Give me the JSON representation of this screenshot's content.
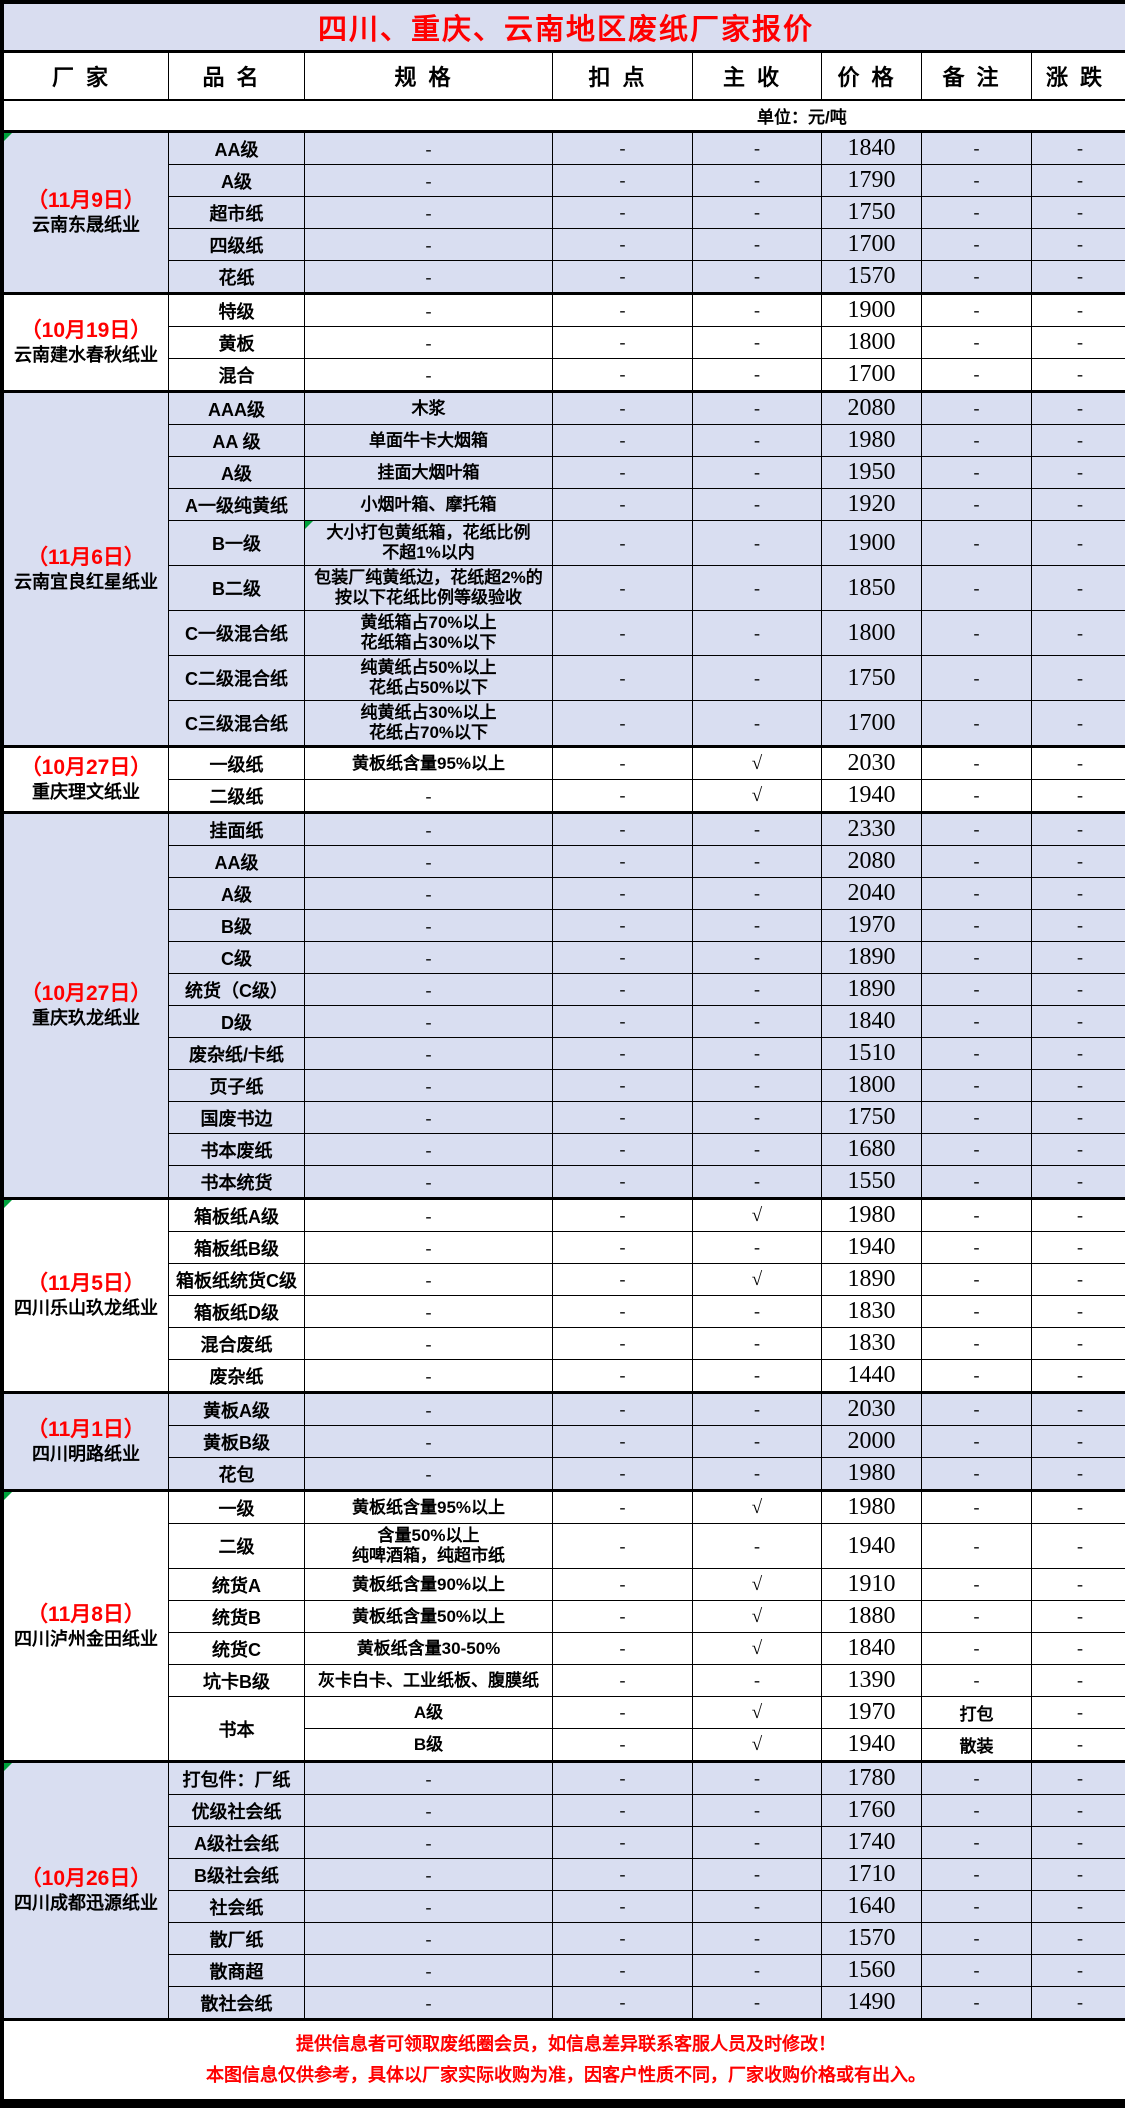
{
  "title": "四川、重庆、云南地区废纸厂家报价",
  "columns": [
    "厂家",
    "品名",
    "规格",
    "扣点",
    "主收",
    "价格",
    "备注",
    "涨跌"
  ],
  "unit_label": "单位：元/吨",
  "colors": {
    "accent_red": "#FF0000",
    "shaded_row_bg": "#D9DEF1",
    "title_bg": "#D9DDF0",
    "border": "#000000",
    "comment_marker_green": "#00A23C"
  },
  "check_symbol": "√",
  "sections": [
    {
      "date": "（11月9日）",
      "factory": "云南东晟纸业",
      "shaded": true,
      "marker": true,
      "rows": [
        {
          "product": "AA级",
          "spec": "-",
          "deduction": "-",
          "main": "-",
          "price": "1840",
          "remark": "-",
          "change": "-"
        },
        {
          "product": "A级",
          "spec": "-",
          "deduction": "-",
          "main": "-",
          "price": "1790",
          "remark": "-",
          "change": "-"
        },
        {
          "product": "超市纸",
          "spec": "-",
          "deduction": "-",
          "main": "-",
          "price": "1750",
          "remark": "-",
          "change": "-"
        },
        {
          "product": "四级纸",
          "spec": "-",
          "deduction": "-",
          "main": "-",
          "price": "1700",
          "remark": "-",
          "change": "-"
        },
        {
          "product": "花纸",
          "spec": "-",
          "deduction": "-",
          "main": "-",
          "price": "1570",
          "remark": "-",
          "change": "-"
        }
      ]
    },
    {
      "date": "（10月19日）",
      "factory": "云南建水春秋纸业",
      "shaded": false,
      "marker": false,
      "rows": [
        {
          "product": "特级",
          "spec": "-",
          "deduction": "-",
          "main": "-",
          "price": "1900",
          "remark": "-",
          "change": "-"
        },
        {
          "product": "黄板",
          "spec": "-",
          "deduction": "-",
          "main": "-",
          "price": "1800",
          "remark": "-",
          "change": "-"
        },
        {
          "product": "混合",
          "spec": "-",
          "deduction": "-",
          "main": "-",
          "price": "1700",
          "remark": "-",
          "change": "-"
        }
      ]
    },
    {
      "date": "（11月6日）",
      "factory": "云南宜良红星纸业",
      "shaded": true,
      "marker": false,
      "rows": [
        {
          "product": "AAA级",
          "spec": "木浆",
          "deduction": "-",
          "main": "-",
          "price": "2080",
          "remark": "-",
          "change": "-"
        },
        {
          "product": "AA 级",
          "spec": "单面牛卡大烟箱",
          "deduction": "-",
          "main": "-",
          "price": "1980",
          "remark": "-",
          "change": "-"
        },
        {
          "product": "A级",
          "spec": "挂面大烟叶箱",
          "deduction": "-",
          "main": "-",
          "price": "1950",
          "remark": "-",
          "change": "-"
        },
        {
          "product": "A一级纯黄纸",
          "spec": "小烟叶箱、摩托箱",
          "deduction": "-",
          "main": "-",
          "price": "1920",
          "remark": "-",
          "change": "-"
        },
        {
          "product": "B一级",
          "spec": "大小打包黄纸箱，花纸比例\n不超1%以内",
          "deduction": "-",
          "main": "-",
          "price": "1900",
          "remark": "-",
          "change": "-",
          "spec_marker": true
        },
        {
          "product": "B二级",
          "spec": "包装厂纯黄纸边，花纸超2%的\n按以下花纸比例等级验收",
          "deduction": "-",
          "main": "-",
          "price": "1850",
          "remark": "-",
          "change": "-"
        },
        {
          "product": "C一级混合纸",
          "spec": "黄纸箱占70%以上\n花纸箱占30%以下",
          "deduction": "-",
          "main": "-",
          "price": "1800",
          "remark": "-",
          "change": "-"
        },
        {
          "product": "C二级混合纸",
          "spec": "纯黄纸占50%以上\n花纸占50%以下",
          "deduction": "-",
          "main": "-",
          "price": "1750",
          "remark": "-",
          "change": "-"
        },
        {
          "product": "C三级混合纸",
          "spec": "纯黄纸占30%以上\n花纸占70%以下",
          "deduction": "-",
          "main": "-",
          "price": "1700",
          "remark": "-",
          "change": "-"
        }
      ]
    },
    {
      "date": "（10月27日）",
      "factory": "重庆理文纸业",
      "shaded": false,
      "marker": false,
      "rows": [
        {
          "product": "一级纸",
          "spec": "黄板纸含量95%以上",
          "deduction": "-",
          "main": "√",
          "price": "2030",
          "remark": "-",
          "change": "-"
        },
        {
          "product": "二级纸",
          "spec": "-",
          "deduction": "-",
          "main": "√",
          "price": "1940",
          "remark": "-",
          "change": "-"
        }
      ]
    },
    {
      "date": "（10月27日）",
      "factory": "重庆玖龙纸业",
      "shaded": true,
      "marker": false,
      "rows": [
        {
          "product": "挂面纸",
          "spec": "-",
          "deduction": "-",
          "main": "-",
          "price": "2330",
          "remark": "-",
          "change": "-"
        },
        {
          "product": "AA级",
          "spec": "-",
          "deduction": "-",
          "main": "-",
          "price": "2080",
          "remark": "-",
          "change": "-"
        },
        {
          "product": "A级",
          "spec": "-",
          "deduction": "-",
          "main": "-",
          "price": "2040",
          "remark": "-",
          "change": "-"
        },
        {
          "product": "B级",
          "spec": "-",
          "deduction": "-",
          "main": "-",
          "price": "1970",
          "remark": "-",
          "change": "-"
        },
        {
          "product": "C级",
          "spec": "-",
          "deduction": "-",
          "main": "-",
          "price": "1890",
          "remark": "-",
          "change": "-"
        },
        {
          "product": "统货（C级）",
          "spec": "-",
          "deduction": "-",
          "main": "-",
          "price": "1890",
          "remark": "-",
          "change": "-"
        },
        {
          "product": "D级",
          "spec": "-",
          "deduction": "-",
          "main": "-",
          "price": "1840",
          "remark": "-",
          "change": "-"
        },
        {
          "product": "废杂纸/卡纸",
          "spec": "-",
          "deduction": "-",
          "main": "-",
          "price": "1510",
          "remark": "-",
          "change": "-"
        },
        {
          "product": "页子纸",
          "spec": "-",
          "deduction": "-",
          "main": "-",
          "price": "1800",
          "remark": "-",
          "change": "-"
        },
        {
          "product": "国废书边",
          "spec": "-",
          "deduction": "-",
          "main": "-",
          "price": "1750",
          "remark": "-",
          "change": "-"
        },
        {
          "product": "书本废纸",
          "spec": "-",
          "deduction": "-",
          "main": "-",
          "price": "1680",
          "remark": "-",
          "change": "-"
        },
        {
          "product": "书本统货",
          "spec": "-",
          "deduction": "-",
          "main": "-",
          "price": "1550",
          "remark": "-",
          "change": "-"
        }
      ]
    },
    {
      "date": "（11月5日）",
      "factory": "四川乐山玖龙纸业",
      "shaded": false,
      "marker": true,
      "rows": [
        {
          "product": "箱板纸A级",
          "spec": "-",
          "deduction": "-",
          "main": "√",
          "price": "1980",
          "remark": "-",
          "change": "-"
        },
        {
          "product": "箱板纸B级",
          "spec": "-",
          "deduction": "-",
          "main": "-",
          "price": "1940",
          "remark": "-",
          "change": "-"
        },
        {
          "product": "箱板纸统货C级",
          "spec": "-",
          "deduction": "-",
          "main": "√",
          "price": "1890",
          "remark": "-",
          "change": "-"
        },
        {
          "product": "箱板纸D级",
          "spec": "-",
          "deduction": "-",
          "main": "-",
          "price": "1830",
          "remark": "-",
          "change": "-"
        },
        {
          "product": "混合废纸",
          "spec": "-",
          "deduction": "-",
          "main": "-",
          "price": "1830",
          "remark": "-",
          "change": "-"
        },
        {
          "product": "废杂纸",
          "spec": "-",
          "deduction": "-",
          "main": "-",
          "price": "1440",
          "remark": "-",
          "change": "-"
        }
      ]
    },
    {
      "date": "（11月1日）",
      "factory": "四川明路纸业",
      "shaded": true,
      "marker": false,
      "rows": [
        {
          "product": "黄板A级",
          "spec": "-",
          "deduction": "-",
          "main": "-",
          "price": "2030",
          "remark": "-",
          "change": "-"
        },
        {
          "product": "黄板B级",
          "spec": "-",
          "deduction": "-",
          "main": "-",
          "price": "2000",
          "remark": "-",
          "change": "-"
        },
        {
          "product": "花包",
          "spec": "-",
          "deduction": "-",
          "main": "-",
          "price": "1980",
          "remark": "-",
          "change": "-"
        }
      ]
    },
    {
      "date": "（11月8日）",
      "factory": "四川泸州金田纸业",
      "shaded": false,
      "marker": true,
      "rows": [
        {
          "product": "一级",
          "spec": "黄板纸含量95%以上",
          "deduction": "-",
          "main": "√",
          "price": "1980",
          "remark": "-",
          "change": "-"
        },
        {
          "product": "二级",
          "spec": "含量50%以上\n纯啤酒箱，纯超市纸",
          "deduction": "-",
          "main": "-",
          "price": "1940",
          "remark": "-",
          "change": "-"
        },
        {
          "product": "统货A",
          "spec": "黄板纸含量90%以上",
          "deduction": "-",
          "main": "√",
          "price": "1910",
          "remark": "-",
          "change": "-"
        },
        {
          "product": "统货B",
          "spec": "黄板纸含量50%以上",
          "deduction": "-",
          "main": "√",
          "price": "1880",
          "remark": "-",
          "change": "-"
        },
        {
          "product": "统货C",
          "spec": "黄板纸含量30-50%",
          "deduction": "-",
          "main": "√",
          "price": "1840",
          "remark": "-",
          "change": "-"
        },
        {
          "product": "坑卡B级",
          "spec": "灰卡白卡、工业纸板、腹膜纸",
          "deduction": "-",
          "main": "-",
          "price": "1390",
          "remark": "-",
          "change": "-"
        },
        {
          "product": "书本",
          "product_rowspan": 2,
          "spec": "A级",
          "deduction": "-",
          "main": "√",
          "price": "1970",
          "remark": "打包",
          "change": "-"
        },
        {
          "product": null,
          "spec": "B级",
          "deduction": "-",
          "main": "√",
          "price": "1940",
          "remark": "散装",
          "change": "-"
        }
      ]
    },
    {
      "date": "（10月26日）",
      "factory": "四川成都迅源纸业",
      "shaded": true,
      "marker": true,
      "rows": [
        {
          "product": "打包件：厂纸",
          "spec": "-",
          "deduction": "-",
          "main": "-",
          "price": "1780",
          "remark": "-",
          "change": "-"
        },
        {
          "product": "优级社会纸",
          "spec": "-",
          "deduction": "-",
          "main": "-",
          "price": "1760",
          "remark": "-",
          "change": "-"
        },
        {
          "product": "A级社会纸",
          "spec": "-",
          "deduction": "-",
          "main": "-",
          "price": "1740",
          "remark": "-",
          "change": "-"
        },
        {
          "product": "B级社会纸",
          "spec": "-",
          "deduction": "-",
          "main": "-",
          "price": "1710",
          "remark": "-",
          "change": "-"
        },
        {
          "product": "社会纸",
          "spec": "-",
          "deduction": "-",
          "main": "-",
          "price": "1640",
          "remark": "-",
          "change": "-"
        },
        {
          "product": "散厂纸",
          "spec": "-",
          "deduction": "-",
          "main": "-",
          "price": "1570",
          "remark": "-",
          "change": "-"
        },
        {
          "product": "散商超",
          "spec": "-",
          "deduction": "-",
          "main": "-",
          "price": "1560",
          "remark": "-",
          "change": "-"
        },
        {
          "product": "散社会纸",
          "spec": "-",
          "deduction": "-",
          "main": "-",
          "price": "1490",
          "remark": "-",
          "change": "-"
        }
      ]
    }
  ],
  "footer": {
    "line1": "提供信息者可领取废纸圈会员，如信息差异联系客服人员及时修改！",
    "line2": "本图信息仅供参考，具体以厂家实际收购为准，因客户性质不同，厂家收购价格或有出入。"
  }
}
